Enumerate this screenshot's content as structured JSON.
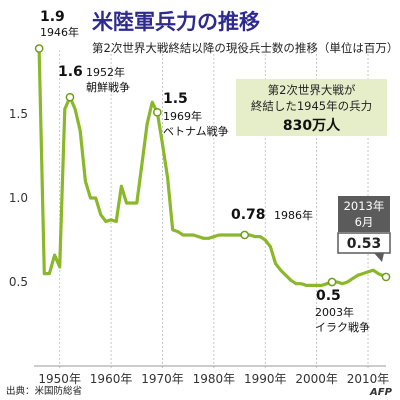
{
  "chart_data": {
    "type": "line",
    "title": "米陸軍兵力の推移",
    "subtitle": "第2次世界大戦終結以降の現役兵士数の推移（単位は百万）",
    "xlabel": "",
    "ylabel": "",
    "xlim": [
      1945,
      2013.5
    ],
    "ylim": [
      0,
      2.0
    ],
    "grid": "vertical",
    "line_color": "#8ab82a",
    "x_ticks": [
      1950,
      1960,
      1970,
      1980,
      1990,
      2000,
      2010
    ],
    "x_tick_labels": [
      "1950年",
      "1960年",
      "1970年",
      "1980年",
      "1990年",
      "2000年",
      "2010年"
    ],
    "y_ticks": [
      0.5,
      1.0,
      1.5
    ],
    "y_tick_labels": [
      "0.5",
      "1.0",
      "1.5"
    ],
    "series": [
      {
        "x": [
          1946,
          1947,
          1948,
          1949,
          1950,
          1951,
          1952,
          1953,
          1954,
          1955,
          1956,
          1957,
          1958,
          1959,
          1960,
          1961,
          1962,
          1963,
          1964,
          1965,
          1966,
          1967,
          1968,
          1969,
          1970,
          1971,
          1972,
          1973,
          1974,
          1975,
          1976,
          1977,
          1978,
          1979,
          1980,
          1981,
          1982,
          1983,
          1984,
          1985,
          1986,
          1987,
          1988,
          1989,
          1990,
          1991,
          1992,
          1993,
          1994,
          1995,
          1996,
          1997,
          1998,
          1999,
          2000,
          2001,
          2002,
          2003,
          2004,
          2005,
          2006,
          2007,
          2008,
          2009,
          2010,
          2011,
          2012,
          2013.5
        ],
        "values": [
          1.89,
          0.55,
          0.55,
          0.66,
          0.59,
          1.53,
          1.6,
          1.53,
          1.4,
          1.1,
          1.0,
          1.0,
          0.9,
          0.86,
          0.87,
          0.86,
          1.07,
          0.97,
          0.97,
          0.97,
          1.2,
          1.44,
          1.57,
          1.51,
          1.32,
          1.12,
          0.81,
          0.8,
          0.78,
          0.78,
          0.78,
          0.77,
          0.76,
          0.76,
          0.77,
          0.78,
          0.78,
          0.78,
          0.78,
          0.78,
          0.78,
          0.78,
          0.77,
          0.77,
          0.75,
          0.71,
          0.61,
          0.57,
          0.54,
          0.51,
          0.49,
          0.49,
          0.48,
          0.48,
          0.48,
          0.48,
          0.49,
          0.5,
          0.5,
          0.49,
          0.5,
          0.52,
          0.54,
          0.55,
          0.56,
          0.57,
          0.55,
          0.53
        ]
      }
    ],
    "markers": [
      {
        "x": 1946,
        "y": 1.89
      },
      {
        "x": 1952,
        "y": 1.6
      },
      {
        "x": 1969,
        "y": 1.51
      },
      {
        "x": 1986,
        "y": 0.78
      },
      {
        "x": 2003,
        "y": 0.5
      },
      {
        "x": 2013.5,
        "y": 0.53
      }
    ],
    "annotations": [
      {
        "value": "1.9",
        "label": "1946年"
      },
      {
        "value": "1.6",
        "label1": "1952年",
        "label2": "朝鮮戦争"
      },
      {
        "value": "1.5",
        "label1": "1969年",
        "label2": "ベトナム戦争"
      },
      {
        "value": "0.78",
        "label": "1986年"
      },
      {
        "value": "0.5",
        "label1": "2003年",
        "label2": "イラク戦争"
      }
    ],
    "callout": {
      "line1": "第2次世界大戦が",
      "line2": "終結した1945年の兵力",
      "value": "830万人"
    },
    "latest": {
      "line1": "2013年",
      "line2": "6月",
      "value": "0.53"
    },
    "source": "出典：米国防総省",
    "credit": "AFP"
  }
}
